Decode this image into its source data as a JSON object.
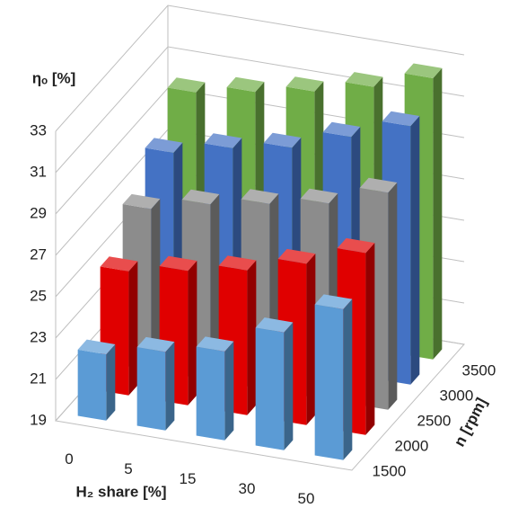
{
  "chart_data": {
    "type": "bar3d",
    "y_label": "ηₒ [%]",
    "x_label": "H₂ share [%]",
    "z_label": "n [rpm]",
    "categories": [
      "0",
      "5",
      "15",
      "30",
      "50"
    ],
    "series": [
      {
        "name": "1500",
        "color": "#5b9bd5",
        "values": [
          22.2,
          22.8,
          23.3,
          24.7,
          26.3
        ]
      },
      {
        "name": "2000",
        "color": "#e00000",
        "values": [
          25.0,
          25.5,
          26.0,
          26.8,
          27.8
        ]
      },
      {
        "name": "2500",
        "color": "#8c8c8c",
        "values": [
          26.8,
          27.5,
          28.0,
          28.5,
          29.5
        ]
      },
      {
        "name": "3000",
        "color": "#4472c4",
        "values": [
          28.3,
          29.0,
          29.5,
          30.5,
          31.5
        ]
      },
      {
        "name": "3500",
        "color": "#70ad47",
        "values": [
          30.0,
          30.5,
          31.0,
          31.7,
          32.6
        ]
      }
    ],
    "ylim": [
      19,
      33
    ],
    "yticks": [
      19,
      21,
      23,
      25,
      27,
      29,
      31,
      33
    ],
    "grid": true
  }
}
